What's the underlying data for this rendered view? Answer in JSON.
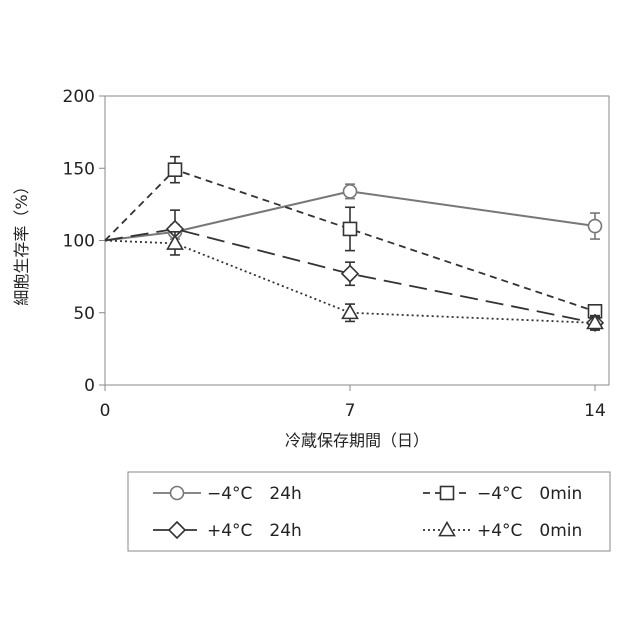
{
  "chart_data": {
    "type": "line",
    "xlabel": "冷蔵保存期間（日）",
    "ylabel": "細胞生存率（%）",
    "xlim": [
      0,
      14.4
    ],
    "ylim": [
      0,
      200
    ],
    "xticks": [
      0,
      7,
      14
    ],
    "yticks": [
      0,
      50,
      100,
      150,
      200
    ],
    "grid": false,
    "legend_position": "bottom",
    "series": [
      {
        "name": "−4°C　24h",
        "marker": "circle",
        "line_style": "solid",
        "color": "#777777",
        "x": [
          0,
          2,
          7,
          14
        ],
        "y": [
          100,
          106,
          134,
          110
        ],
        "err": [
          0,
          5,
          5,
          9
        ]
      },
      {
        "name": "−4°C　0min",
        "marker": "square",
        "line_style": "short-dash",
        "color": "#333333",
        "x": [
          0,
          2,
          7,
          14
        ],
        "y": [
          100,
          149,
          108,
          51
        ],
        "err": [
          0,
          9,
          15,
          3
        ]
      },
      {
        "name": "+4°C　24h",
        "marker": "diamond",
        "line_style": "long-dash",
        "color": "#333333",
        "x": [
          0,
          2,
          7,
          14
        ],
        "y": [
          100,
          108,
          77,
          43
        ],
        "err": [
          0,
          13,
          8,
          4
        ]
      },
      {
        "name": "+4°C　0min",
        "marker": "triangle",
        "line_style": "dotted",
        "color": "#333333",
        "x": [
          0,
          2,
          7,
          14
        ],
        "y": [
          100,
          98,
          50,
          43
        ],
        "err": [
          0,
          8,
          6,
          5
        ]
      }
    ]
  }
}
